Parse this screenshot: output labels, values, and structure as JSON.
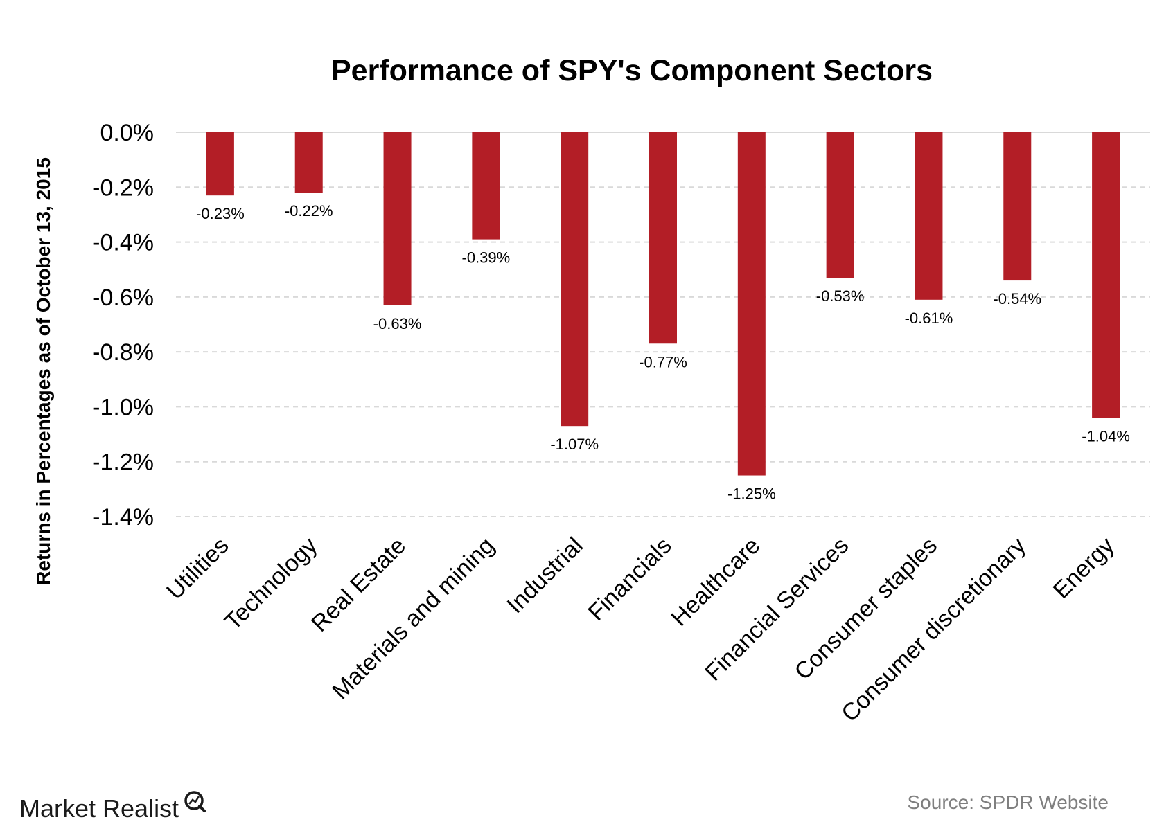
{
  "chart_data": {
    "type": "bar",
    "title": "Performance of SPY's Component Sectors",
    "ylabel": "Returns in Percentages as of October 13, 2015",
    "xlabel": "",
    "categories": [
      "Utilities",
      "Technology",
      "Real Estate",
      "Materials and mining",
      "Industrial",
      "Financials",
      "Healthcare",
      "Financial Services",
      "Consumer staples",
      "Consumer discretionary",
      "Energy"
    ],
    "values": [
      -0.23,
      -0.22,
      -0.63,
      -0.39,
      -1.07,
      -0.77,
      -1.25,
      -0.53,
      -0.61,
      -0.54,
      -1.04
    ],
    "data_labels": [
      "-0.23%",
      "-0.22%",
      "-0.63%",
      "-0.39%",
      "-1.07%",
      "-0.77%",
      "-1.25%",
      "-0.53%",
      "-0.61%",
      "-0.54%",
      "-1.04%"
    ],
    "ylim": [
      -1.4,
      0
    ],
    "yticks": [
      0,
      -0.2,
      -0.4,
      -0.6,
      -0.8,
      -1.0,
      -1.2,
      -1.4
    ],
    "ytick_labels": [
      "0.0%",
      "-0.2%",
      "-0.4%",
      "-0.6%",
      "-0.8%",
      "-1.0%",
      "-1.2%",
      "-1.4%"
    ],
    "grid": true,
    "bar_color": "#b31e26",
    "gridline_color": "#d9d9d9"
  },
  "footer": {
    "source": "Source: SPDR Website",
    "logo": "Market Realist"
  }
}
